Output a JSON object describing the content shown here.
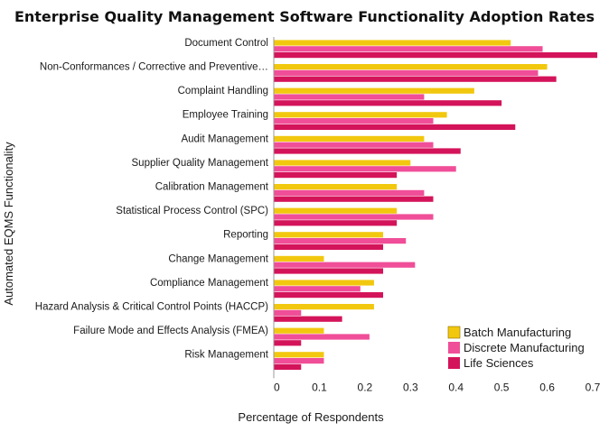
{
  "chart_data": {
    "type": "bar",
    "orientation": "horizontal",
    "title": "Enterprise Quality Management Software Functionality Adoption Rates",
    "xlabel": "Percentage of Respondents",
    "ylabel": "Automated EQMS Functionality",
    "xlim": [
      0,
      0.7
    ],
    "xticks": [
      "0",
      "0.1",
      "0.2",
      "0.3",
      "0.4",
      "0.5",
      "0.6",
      "0.7"
    ],
    "grid": false,
    "legend_position": "bottom-right",
    "categories": [
      "Document Control",
      "Non-Conformances / Corrective and Preventive…",
      "Complaint Handling",
      "Employee Training",
      "Audit Management",
      "Supplier Quality Management",
      "Calibration Management",
      "Statistical Process Control (SPC)",
      "Reporting",
      "Change Management",
      "Compliance Management",
      "Hazard Analysis & Critical Control Points (HACCP)",
      "Failure Mode and Effects Analysis (FMEA)",
      "Risk Management"
    ],
    "series": [
      {
        "name": "Batch Manufacturing",
        "color": "#f2c80f",
        "values": [
          0.52,
          0.6,
          0.44,
          0.38,
          0.33,
          0.3,
          0.27,
          0.27,
          0.24,
          0.11,
          0.22,
          0.22,
          0.11,
          0.11
        ]
      },
      {
        "name": "Discrete Manufacturing",
        "color": "#f04e98",
        "values": [
          0.59,
          0.58,
          0.33,
          0.35,
          0.35,
          0.4,
          0.33,
          0.35,
          0.29,
          0.31,
          0.19,
          0.06,
          0.21,
          0.11
        ]
      },
      {
        "name": "Life Sciences",
        "color": "#d4145a",
        "values": [
          0.71,
          0.62,
          0.5,
          0.53,
          0.41,
          0.27,
          0.35,
          0.27,
          0.24,
          0.24,
          0.24,
          0.15,
          0.06,
          0.06
        ]
      }
    ]
  }
}
